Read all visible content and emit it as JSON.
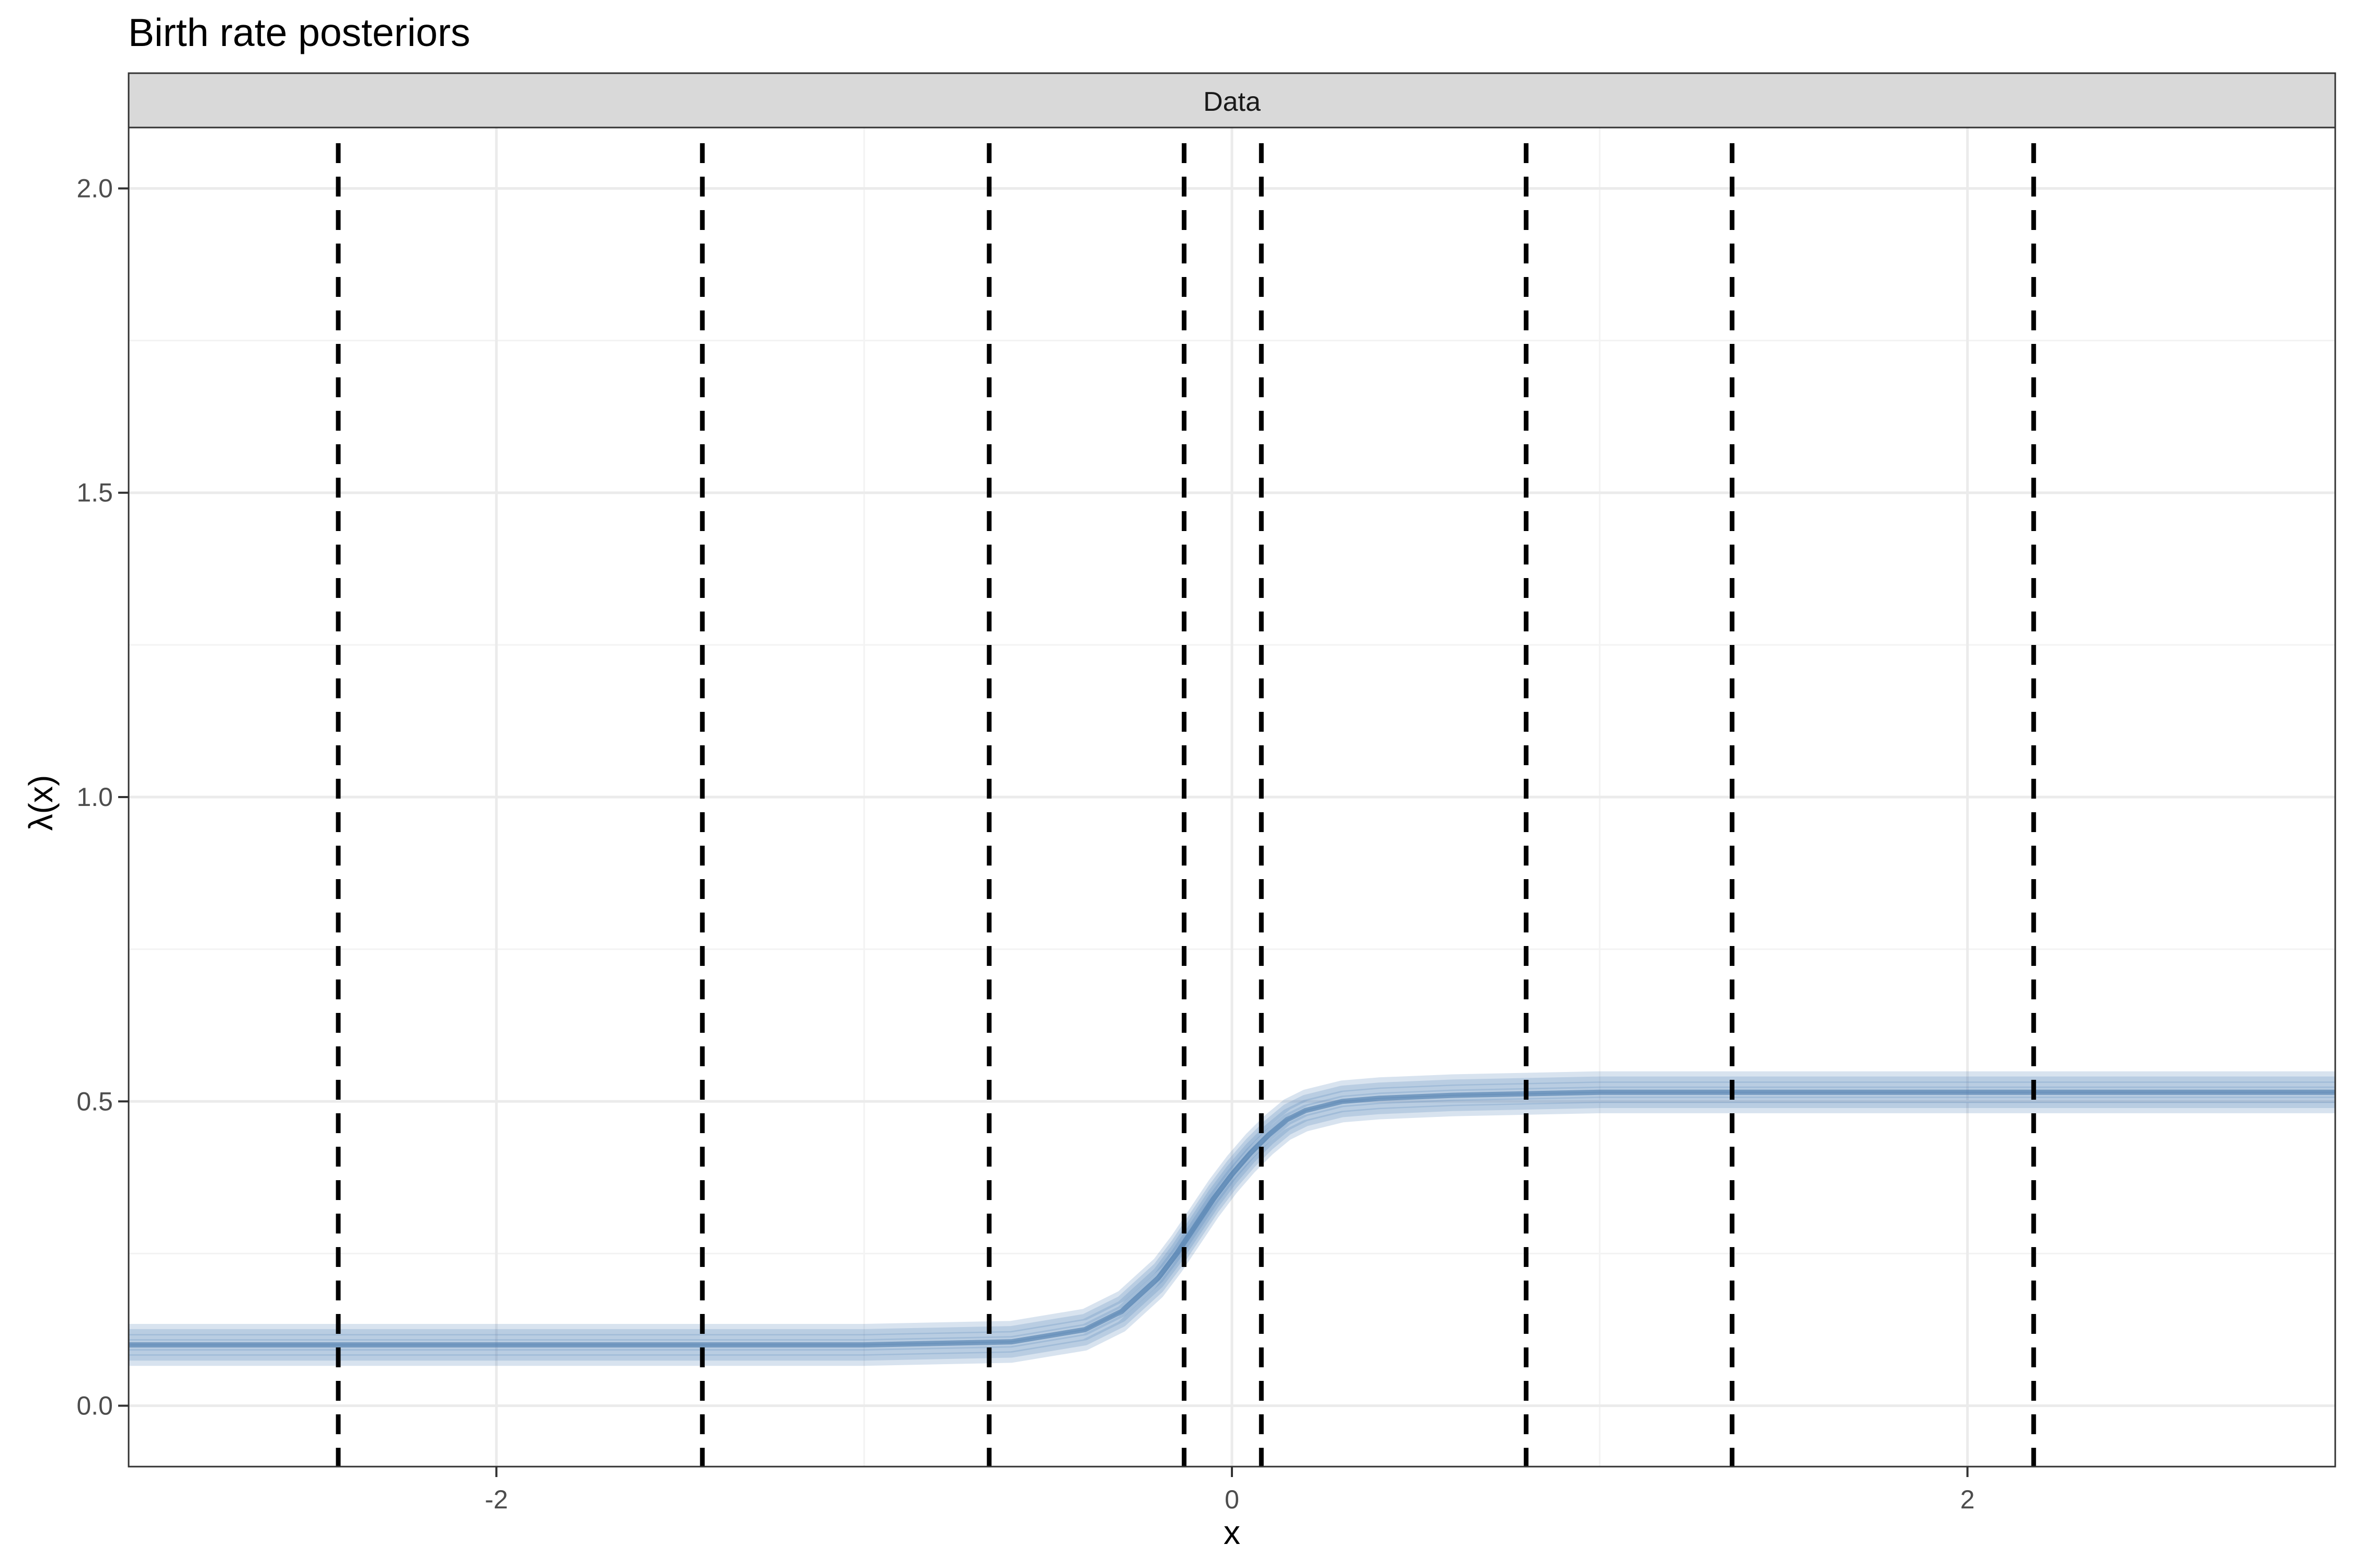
{
  "chart_data": {
    "type": "line",
    "title": "Birth rate posteriors",
    "facet_label": "Data",
    "xlabel": "x",
    "ylabel": "λ(x)",
    "xlim": [
      -3.0,
      3.0
    ],
    "ylim": [
      -0.1,
      2.1
    ],
    "x_ticks": [
      -2,
      0,
      2
    ],
    "x_tick_labels": [
      "-2",
      "0",
      "2"
    ],
    "y_ticks": [
      0.0,
      0.5,
      1.0,
      1.5,
      2.0
    ],
    "y_tick_labels": [
      "0.0",
      "0.5",
      "1.0",
      "1.5",
      "2.0"
    ],
    "grid": true,
    "legend": "none",
    "series": [
      {
        "style": "posterior-band",
        "x": [
          -3.0,
          -2.5,
          -2.0,
          -1.5,
          -1.0,
          -0.6,
          -0.4,
          -0.3,
          -0.2,
          -0.15,
          -0.1,
          -0.05,
          0.0,
          0.05,
          0.1,
          0.15,
          0.2,
          0.3,
          0.4,
          0.6,
          1.0,
          1.5,
          2.0,
          2.5,
          3.0
        ],
        "values": [
          0.1,
          0.1,
          0.1,
          0.1,
          0.1,
          0.105,
          0.125,
          0.155,
          0.21,
          0.25,
          0.295,
          0.34,
          0.38,
          0.415,
          0.445,
          0.47,
          0.485,
          0.5,
          0.505,
          0.51,
          0.515,
          0.515,
          0.515,
          0.515,
          0.515
        ],
        "band_width": 0.05
      }
    ],
    "vlines": [
      -2.43,
      -1.44,
      -0.66,
      -0.13,
      0.08,
      0.8,
      1.36,
      2.18
    ]
  },
  "colors": {
    "band": "#4f81b4",
    "center_line": "#4a7aab",
    "vline": "#000000",
    "grid_major": "#ebebeb",
    "grid_minor": "#f3f3f3",
    "strip_fill": "#d9d9d9",
    "panel_border": "#333333"
  }
}
